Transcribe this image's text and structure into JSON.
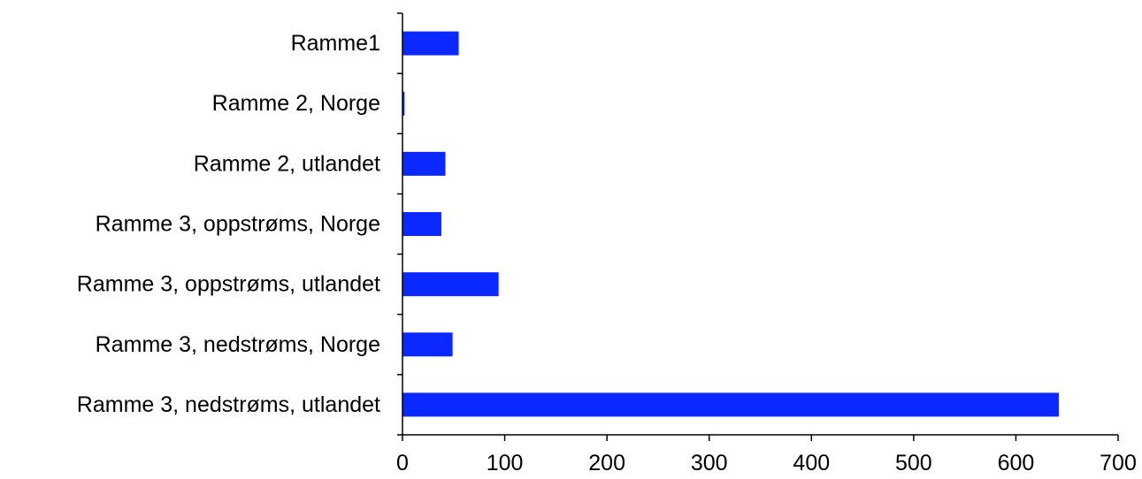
{
  "chart_data": {
    "type": "bar",
    "orientation": "horizontal",
    "title": "",
    "xlabel": "",
    "ylabel": "",
    "categories": [
      "Ramme1",
      "Ramme 2, Norge",
      "Ramme 2, utlandet",
      "Ramme 3, oppstrøms, Norge",
      "Ramme 3, oppstrøms, utlandet",
      "Ramme 3, nedstrøms, Norge",
      "Ramme 3, nedstrøms, utlandet"
    ],
    "values": [
      55,
      2,
      42,
      38,
      94,
      49,
      642
    ],
    "xlim": [
      0,
      700
    ],
    "xticks": [
      0,
      100,
      200,
      300,
      400,
      500,
      600,
      700
    ],
    "xtick_labels": [
      "0",
      "100",
      "200",
      "300",
      "400",
      "500",
      "600",
      "700"
    ],
    "grid": false,
    "legend": "none",
    "bar_color": "#0a28ff"
  }
}
